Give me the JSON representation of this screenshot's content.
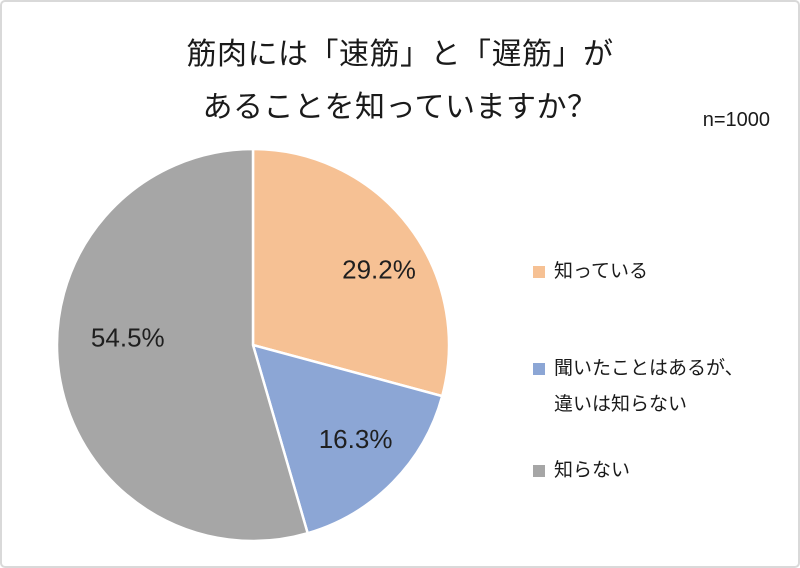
{
  "frame": {
    "background": "#FFFFFF",
    "border_color": "#D9D9D9"
  },
  "header": {
    "title_line1": "筋肉には「速筋」と「遅筋」が",
    "title_line2": "あることを知っていますか？",
    "sample_size": "n=1000"
  },
  "legend": {
    "position": "right",
    "items": [
      {
        "label_lines": [
          "知っている"
        ],
        "color": "#F6C194"
      },
      {
        "label_lines": [
          "聞いたことはあるが、",
          "違いは知らない"
        ],
        "color": "#8CA6D5"
      },
      {
        "label_lines": [
          "知らない"
        ],
        "color": "#A6A6A6"
      }
    ]
  },
  "chart_data": {
    "type": "pie",
    "title": "筋肉には「速筋」と「遅筋」があることを知っていますか？",
    "sample_size_label": "n=1000",
    "sample_size": 1000,
    "start_angle_deg": 0,
    "direction": "clockwise",
    "legend_position": "right",
    "slice_border_color": "#FFFFFF",
    "categories": [
      "知っている",
      "聞いたことはあるが、違いは知らない",
      "知らない"
    ],
    "values": [
      29.2,
      16.3,
      54.5
    ],
    "slices": [
      {
        "label": "知っている",
        "value": 29.2,
        "display": "29.2%",
        "color": "#F6C194",
        "label_angle_deg": 59,
        "label_radius_frac": 0.75
      },
      {
        "label": "聞いたことはあるが、違いは知らない",
        "value": 16.3,
        "display": "16.3%",
        "color": "#8CA6D5",
        "label_angle_deg": 132.5,
        "label_radius_frac": 0.71
      },
      {
        "label": "知らない",
        "value": 54.5,
        "display": "54.5%",
        "color": "#A6A6A6",
        "label_angle_deg": 273.5,
        "label_radius_frac": 0.64
      }
    ]
  }
}
